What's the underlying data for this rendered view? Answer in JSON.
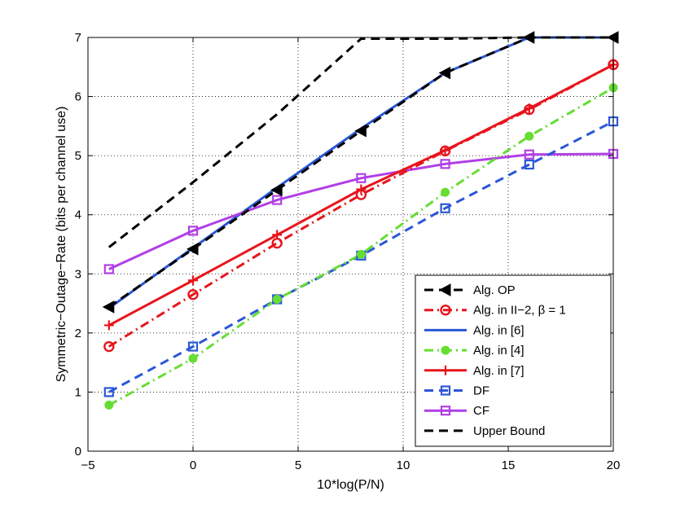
{
  "chart_data": {
    "type": "line",
    "title": "",
    "xlabel": "10*log(P/N)",
    "ylabel": "Symmetric−Outage−Rate (bits per channel use)",
    "xlim": [
      -5,
      20
    ],
    "ylim": [
      0,
      7
    ],
    "xticks": [
      -5,
      0,
      5,
      10,
      15,
      20
    ],
    "xtick_labels": [
      "−5",
      "0",
      "5",
      "10",
      "15",
      "20"
    ],
    "yticks": [
      0,
      1,
      2,
      3,
      4,
      5,
      6,
      7
    ],
    "ytick_labels": [
      "0",
      "1",
      "2",
      "3",
      "4",
      "5",
      "6",
      "7"
    ],
    "grid": true,
    "legend_position": "bottom-right",
    "series": [
      {
        "name": "Alg. OP",
        "color": "#000000",
        "dash": "dashed",
        "marker": "triangle-left",
        "x": [
          -4,
          0,
          4,
          8,
          12,
          16,
          20
        ],
        "y": [
          2.44,
          3.42,
          4.42,
          5.42,
          6.4,
          7.0,
          7.0
        ]
      },
      {
        "name": "Alg. in II−2, β = 1",
        "color": "#e8141b",
        "dash": "dashdot",
        "marker": "circle",
        "x": [
          -4,
          0,
          4,
          8,
          12,
          16,
          20
        ],
        "y": [
          1.77,
          2.65,
          3.52,
          4.34,
          5.08,
          5.78,
          6.54
        ]
      },
      {
        "name": "Alg. in [6]",
        "color": "#2b57d6",
        "dash": "solid",
        "marker": "none",
        "x": [
          -4,
          0,
          4,
          8,
          12,
          16,
          20
        ],
        "y": [
          2.42,
          3.44,
          4.46,
          5.46,
          6.4,
          7.0,
          7.0
        ]
      },
      {
        "name": "Alg. in [4]",
        "color": "#66dd33",
        "dash": "dashdot",
        "marker": "dot",
        "x": [
          -4,
          0,
          4,
          8,
          12,
          16,
          20
        ],
        "y": [
          0.78,
          1.57,
          2.57,
          3.33,
          4.38,
          5.33,
          6.15
        ]
      },
      {
        "name": "Alg. in [7]",
        "color": "#e8141b",
        "dash": "solid",
        "marker": "plus",
        "x": [
          -4,
          0,
          4,
          8,
          12,
          16,
          20
        ],
        "y": [
          2.13,
          2.89,
          3.66,
          4.43,
          5.09,
          5.8,
          6.54
        ]
      },
      {
        "name": "DF",
        "color": "#2b57d6",
        "dash": "dashed",
        "marker": "square",
        "x": [
          -4,
          0,
          4,
          8,
          12,
          16,
          20
        ],
        "y": [
          1.0,
          1.77,
          2.57,
          3.31,
          4.11,
          4.85,
          5.58
        ]
      },
      {
        "name": "CF",
        "color": "#b13fe6",
        "dash": "solid",
        "marker": "square",
        "x": [
          -4,
          0,
          4,
          8,
          12,
          16,
          20
        ],
        "y": [
          3.08,
          3.73,
          4.25,
          4.62,
          4.86,
          5.02,
          5.03
        ]
      },
      {
        "name": "Upper Bound",
        "color": "#000000",
        "dash": "dashed",
        "marker": "none",
        "x": [
          -4,
          0,
          4,
          8,
          12,
          16,
          20
        ],
        "y": [
          3.45,
          4.55,
          5.7,
          6.98,
          6.98,
          7.0,
          7.0
        ]
      }
    ]
  }
}
